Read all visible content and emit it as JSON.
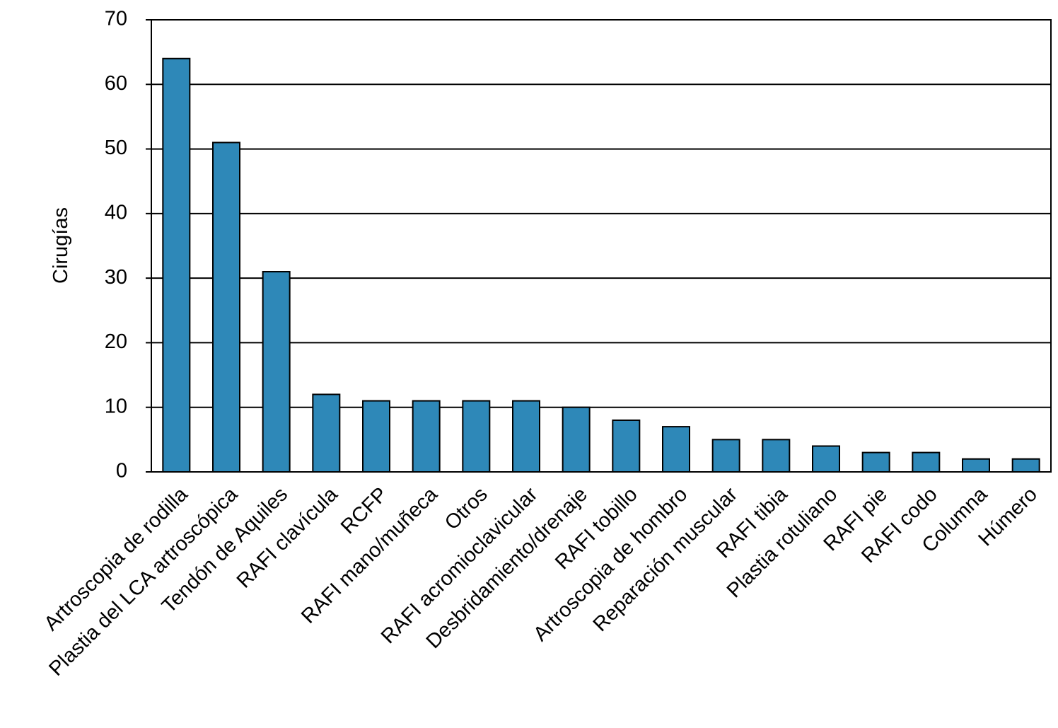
{
  "chart_data": {
    "type": "bar",
    "y_label": "Cirugías",
    "categories": [
      "Artroscopia de rodilla",
      "Plastia del LCA artroscópica",
      "Tendón de Aquiles",
      "RAFI clavícula",
      "RCFP",
      "RAFI mano/muñeca",
      "Otros",
      "RAFI acromioclavicular",
      "Desbridamiento/drenaje",
      "RAFI tobillo",
      "Artroscopia de hombro",
      "Reparación muscular",
      "RAFI tibia",
      "Plastia rotuliano",
      "RAFI pie",
      "RAFI codo",
      "Columna",
      "Húmero"
    ],
    "values": [
      64,
      51,
      31,
      12,
      11,
      11,
      11,
      11,
      10,
      8,
      7,
      5,
      5,
      4,
      3,
      3,
      2,
      2
    ],
    "color": "#2e88b8",
    "ylim": [
      0,
      70
    ],
    "yticks": [
      0,
      10,
      20,
      30,
      40,
      50,
      60,
      70
    ],
    "grid": true
  }
}
